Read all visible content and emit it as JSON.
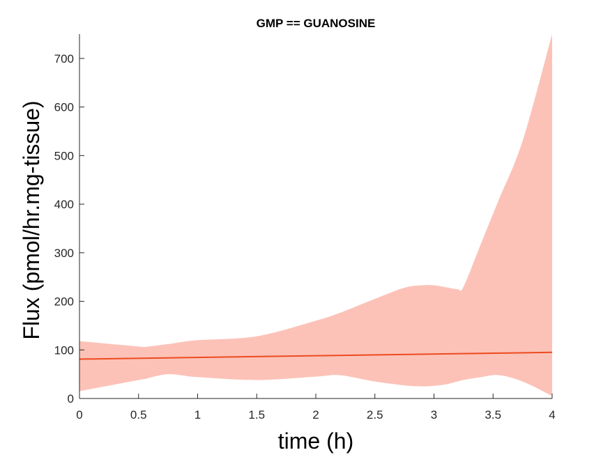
{
  "chart_data": {
    "type": "area",
    "title": "GMP == GUANOSINE",
    "xlabel": "time (h)",
    "ylabel": "Flux (pmol/hr.mg-tissue)",
    "xlim": [
      0,
      4
    ],
    "ylim": [
      0,
      750
    ],
    "xticks": [
      0,
      0.5,
      1,
      1.5,
      2,
      2.5,
      3,
      3.5,
      4
    ],
    "xtick_labels": [
      "0",
      "0.5",
      "1",
      "1.5",
      "2",
      "2.5",
      "3",
      "3.5",
      "4"
    ],
    "yticks": [
      0,
      100,
      200,
      300,
      400,
      500,
      600,
      700
    ],
    "ytick_labels": [
      "0",
      "100",
      "200",
      "300",
      "400",
      "500",
      "600",
      "700"
    ],
    "grid": false,
    "band": {
      "color": "#fcc2b8",
      "x": [
        0,
        0.5,
        0.55,
        0.75,
        1,
        1.5,
        2,
        2.2,
        2.5,
        2.75,
        2.9,
        3,
        3.1,
        3.2,
        3.25,
        3.4,
        3.55,
        3.75,
        4
      ],
      "upper": [
        118,
        107,
        106,
        112,
        120,
        128,
        160,
        176,
        205,
        228,
        233,
        233,
        229,
        225,
        230,
        320,
        410,
        530,
        750
      ],
      "lower": [
        15,
        38,
        40,
        50,
        44,
        38,
        45,
        48,
        35,
        27,
        25,
        26,
        29,
        35,
        38,
        44,
        48,
        35,
        5
      ]
    },
    "series": [
      {
        "color": "#ee4a1f",
        "x": [
          0,
          4
        ],
        "values": [
          81,
          95
        ]
      }
    ]
  }
}
